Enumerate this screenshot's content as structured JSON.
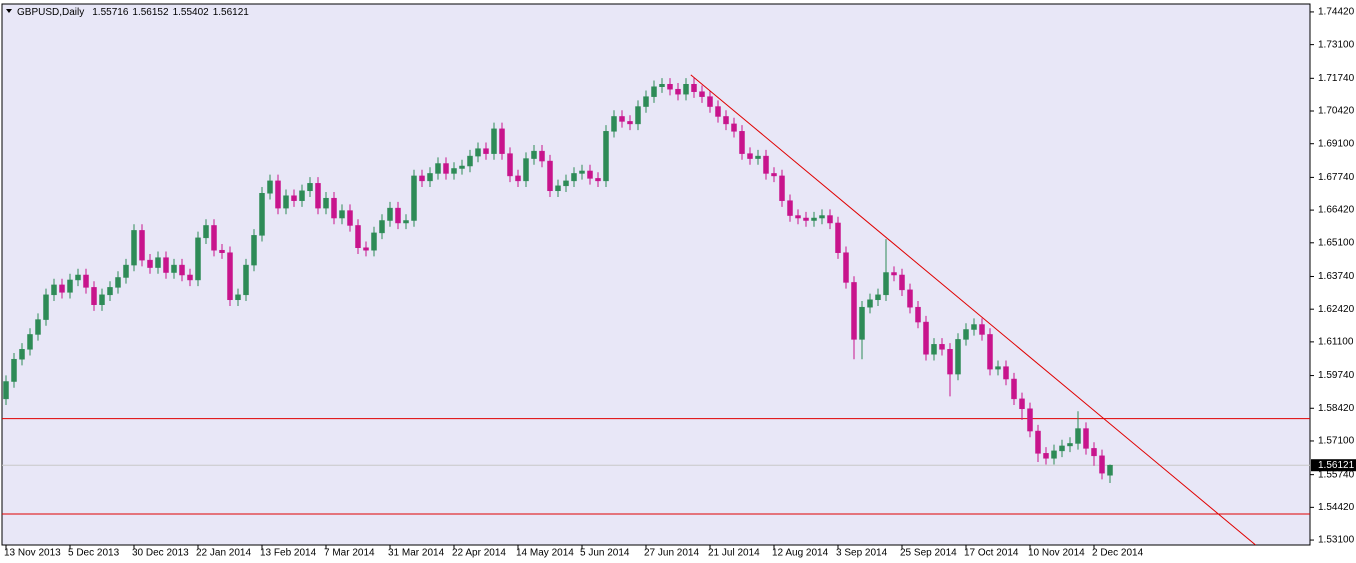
{
  "chart_data": {
    "type": "candlestick",
    "title": "GBPUSD,Daily",
    "up_color": "#2e8b57",
    "down_color": "#c8148c",
    "background": "#e8e7f7",
    "grid": false,
    "ylim": [
      1.529,
      1.7474
    ],
    "yticks": [
      {
        "value": 1.7442,
        "label": "1.74420"
      },
      {
        "value": 1.731,
        "label": "1.73100"
      },
      {
        "value": 1.7174,
        "label": "1.71740"
      },
      {
        "value": 1.7042,
        "label": "1.70420"
      },
      {
        "value": 1.691,
        "label": "1.69100"
      },
      {
        "value": 1.6774,
        "label": "1.67740"
      },
      {
        "value": 1.6642,
        "label": "1.66420"
      },
      {
        "value": 1.651,
        "label": "1.65100"
      },
      {
        "value": 1.6374,
        "label": "1.63740"
      },
      {
        "value": 1.6242,
        "label": "1.62420"
      },
      {
        "value": 1.611,
        "label": "1.61100"
      },
      {
        "value": 1.5974,
        "label": "1.59740"
      },
      {
        "value": 1.5842,
        "label": "1.58420"
      },
      {
        "value": 1.571,
        "label": "1.57100"
      },
      {
        "value": 1.5574,
        "label": "1.55740"
      },
      {
        "value": 1.5442,
        "label": "1.54420"
      },
      {
        "value": 1.531,
        "label": "1.53100"
      }
    ],
    "xlim": [
      -0.5,
      163
    ],
    "xticks": [
      {
        "value": 0,
        "label": "13 Nov 2013"
      },
      {
        "value": 8,
        "label": "5 Dec 2013"
      },
      {
        "value": 16,
        "label": "30 Dec 2013"
      },
      {
        "value": 24,
        "label": "22 Jan 2014"
      },
      {
        "value": 32,
        "label": "13 Feb 2014"
      },
      {
        "value": 40,
        "label": "7 Mar 2014"
      },
      {
        "value": 48,
        "label": "31 Mar 2014"
      },
      {
        "value": 56,
        "label": "22 Apr 2014"
      },
      {
        "value": 64,
        "label": "14 May 2014"
      },
      {
        "value": 72,
        "label": "5 Jun 2014"
      },
      {
        "value": 80,
        "label": "27 Jun 2014"
      },
      {
        "value": 88,
        "label": "21 Jul 2014"
      },
      {
        "value": 96,
        "label": "12 Aug 2014"
      },
      {
        "value": 104,
        "label": "3 Sep 2014"
      },
      {
        "value": 112,
        "label": "25 Sep 2014"
      },
      {
        "value": 120,
        "label": "17 Oct 2014"
      },
      {
        "value": 128,
        "label": "10 Nov 2014"
      },
      {
        "value": 136,
        "label": "2 Dec 2014"
      }
    ],
    "hlines": [
      1.58,
      1.5415
    ],
    "hline_color": "#e00000",
    "trendline": {
      "x": [
        85.6,
        156.2
      ],
      "y": [
        1.7188,
        1.529
      ],
      "color": "#e00000"
    },
    "candles": [
      [
        1.588,
        1.5975,
        1.5855,
        1.595
      ],
      [
        1.595,
        1.6065,
        1.5925,
        1.604
      ],
      [
        1.604,
        1.6105,
        1.6015,
        1.608
      ],
      [
        1.608,
        1.6165,
        1.6055,
        1.614
      ],
      [
        1.614,
        1.6225,
        1.6115,
        1.62
      ],
      [
        1.62,
        1.6325,
        1.6175,
        1.63
      ],
      [
        1.63,
        1.6365,
        1.6275,
        1.634
      ],
      [
        1.634,
        1.6365,
        1.6285,
        1.631
      ],
      [
        1.631,
        1.6385,
        1.6285,
        1.636
      ],
      [
        1.636,
        1.6405,
        1.6335,
        1.638
      ],
      [
        1.638,
        1.6405,
        1.6305,
        1.633
      ],
      [
        1.633,
        1.6355,
        1.6235,
        1.626
      ],
      [
        1.626,
        1.6325,
        1.6235,
        1.63
      ],
      [
        1.63,
        1.6355,
        1.6275,
        1.633
      ],
      [
        1.633,
        1.6395,
        1.6305,
        1.637
      ],
      [
        1.637,
        1.6445,
        1.6345,
        1.642
      ],
      [
        1.642,
        1.6585,
        1.6395,
        1.656
      ],
      [
        1.656,
        1.6585,
        1.6415,
        1.644
      ],
      [
        1.644,
        1.6465,
        1.6385,
        1.641
      ],
      [
        1.641,
        1.6475,
        1.6385,
        1.645
      ],
      [
        1.645,
        1.6475,
        1.6365,
        1.639
      ],
      [
        1.639,
        1.6445,
        1.6365,
        1.642
      ],
      [
        1.642,
        1.6445,
        1.6355,
        1.638
      ],
      [
        1.638,
        1.6405,
        1.6335,
        1.636
      ],
      [
        1.636,
        1.6555,
        1.6335,
        1.653
      ],
      [
        1.653,
        1.6605,
        1.6505,
        1.658
      ],
      [
        1.658,
        1.6605,
        1.6455,
        1.648
      ],
      [
        1.648,
        1.6505,
        1.6445,
        1.647
      ],
      [
        1.647,
        1.6495,
        1.6255,
        1.628
      ],
      [
        1.628,
        1.6325,
        1.6255,
        1.63
      ],
      [
        1.63,
        1.6445,
        1.6275,
        1.642
      ],
      [
        1.642,
        1.6565,
        1.6395,
        1.654
      ],
      [
        1.654,
        1.6735,
        1.6515,
        1.671
      ],
      [
        1.671,
        1.6785,
        1.6685,
        1.676
      ],
      [
        1.676,
        1.6785,
        1.6625,
        1.665
      ],
      [
        1.665,
        1.6725,
        1.6625,
        1.67
      ],
      [
        1.67,
        1.6725,
        1.6655,
        1.668
      ],
      [
        1.668,
        1.6745,
        1.6655,
        1.672
      ],
      [
        1.672,
        1.6775,
        1.6695,
        1.675
      ],
      [
        1.675,
        1.6775,
        1.6625,
        1.665
      ],
      [
        1.665,
        1.6715,
        1.6625,
        1.669
      ],
      [
        1.669,
        1.6715,
        1.6585,
        1.661
      ],
      [
        1.661,
        1.6665,
        1.6585,
        1.664
      ],
      [
        1.664,
        1.6665,
        1.6555,
        1.658
      ],
      [
        1.658,
        1.6605,
        1.6465,
        1.649
      ],
      [
        1.649,
        1.6515,
        1.6455,
        1.648
      ],
      [
        1.648,
        1.6575,
        1.6455,
        1.655
      ],
      [
        1.655,
        1.6625,
        1.6525,
        1.66
      ],
      [
        1.66,
        1.6675,
        1.6575,
        1.665
      ],
      [
        1.665,
        1.6675,
        1.6565,
        1.659
      ],
      [
        1.659,
        1.6625,
        1.6565,
        1.66
      ],
      [
        1.66,
        1.6805,
        1.6575,
        1.678
      ],
      [
        1.678,
        1.6805,
        1.6735,
        1.676
      ],
      [
        1.676,
        1.6815,
        1.6735,
        1.679
      ],
      [
        1.679,
        1.6855,
        1.6765,
        1.683
      ],
      [
        1.683,
        1.6855,
        1.6765,
        1.679
      ],
      [
        1.679,
        1.6835,
        1.6765,
        1.681
      ],
      [
        1.681,
        1.6845,
        1.6785,
        1.682
      ],
      [
        1.682,
        1.6885,
        1.6795,
        1.686
      ],
      [
        1.686,
        1.6915,
        1.6835,
        1.689
      ],
      [
        1.689,
        1.6915,
        1.6845,
        1.687
      ],
      [
        1.687,
        1.6995,
        1.6845,
        1.697
      ],
      [
        1.697,
        1.6995,
        1.6845,
        1.687
      ],
      [
        1.687,
        1.6895,
        1.6755,
        1.678
      ],
      [
        1.678,
        1.6805,
        1.6735,
        1.676
      ],
      [
        1.676,
        1.6875,
        1.6735,
        1.685
      ],
      [
        1.685,
        1.6905,
        1.6825,
        1.688
      ],
      [
        1.688,
        1.6905,
        1.6815,
        1.684
      ],
      [
        1.684,
        1.6865,
        1.6695,
        1.672
      ],
      [
        1.672,
        1.6765,
        1.6695,
        1.674
      ],
      [
        1.674,
        1.6785,
        1.6715,
        1.676
      ],
      [
        1.676,
        1.6815,
        1.6735,
        1.679
      ],
      [
        1.679,
        1.6825,
        1.6765,
        1.68
      ],
      [
        1.68,
        1.6825,
        1.6745,
        1.677
      ],
      [
        1.677,
        1.6795,
        1.6735,
        1.676
      ],
      [
        1.676,
        1.6985,
        1.6735,
        1.696
      ],
      [
        1.696,
        1.7045,
        1.6935,
        1.702
      ],
      [
        1.702,
        1.7045,
        1.6975,
        1.7
      ],
      [
        1.7,
        1.7025,
        1.6965,
        1.699
      ],
      [
        1.699,
        1.7085,
        1.6965,
        1.706
      ],
      [
        1.706,
        1.7125,
        1.7035,
        1.71
      ],
      [
        1.71,
        1.7165,
        1.7075,
        1.714
      ],
      [
        1.714,
        1.7175,
        1.7115,
        1.715
      ],
      [
        1.715,
        1.7175,
        1.7105,
        1.713
      ],
      [
        1.713,
        1.7155,
        1.7085,
        1.711
      ],
      [
        1.711,
        1.7175,
        1.7085,
        1.715
      ],
      [
        1.715,
        1.7175,
        1.7095,
        1.712
      ],
      [
        1.712,
        1.7145,
        1.7075,
        1.71
      ],
      [
        1.71,
        1.7125,
        1.7035,
        1.706
      ],
      [
        1.706,
        1.7085,
        1.6995,
        1.702
      ],
      [
        1.702,
        1.7045,
        1.6965,
        1.699
      ],
      [
        1.699,
        1.7015,
        1.6935,
        1.696
      ],
      [
        1.696,
        1.6985,
        1.6845,
        1.687
      ],
      [
        1.687,
        1.6895,
        1.6825,
        1.685
      ],
      [
        1.685,
        1.6885,
        1.6825,
        1.686
      ],
      [
        1.686,
        1.6885,
        1.6765,
        1.679
      ],
      [
        1.679,
        1.6815,
        1.6755,
        1.678
      ],
      [
        1.678,
        1.6805,
        1.6655,
        1.668
      ],
      [
        1.668,
        1.6705,
        1.6595,
        1.662
      ],
      [
        1.662,
        1.6645,
        1.6585,
        1.661
      ],
      [
        1.661,
        1.6635,
        1.6575,
        1.66
      ],
      [
        1.66,
        1.6635,
        1.6575,
        1.661
      ],
      [
        1.661,
        1.6645,
        1.6585,
        1.662
      ],
      [
        1.662,
        1.6645,
        1.6565,
        1.659
      ],
      [
        1.659,
        1.6615,
        1.6445,
        1.647
      ],
      [
        1.647,
        1.6495,
        1.6325,
        1.635
      ],
      [
        1.635,
        1.6375,
        1.604,
        1.612
      ],
      [
        1.612,
        1.6275,
        1.604,
        1.625
      ],
      [
        1.625,
        1.6305,
        1.6225,
        1.628
      ],
      [
        1.628,
        1.6325,
        1.6255,
        1.63
      ],
      [
        1.63,
        1.6525,
        1.6275,
        1.639
      ],
      [
        1.639,
        1.6415,
        1.6355,
        1.638
      ],
      [
        1.638,
        1.6405,
        1.6295,
        1.632
      ],
      [
        1.632,
        1.6345,
        1.6225,
        1.625
      ],
      [
        1.625,
        1.6275,
        1.6165,
        1.619
      ],
      [
        1.619,
        1.6215,
        1.6035,
        1.606
      ],
      [
        1.606,
        1.6125,
        1.6035,
        1.61
      ],
      [
        1.61,
        1.6125,
        1.6055,
        1.608
      ],
      [
        1.608,
        1.6105,
        1.589,
        1.598
      ],
      [
        1.598,
        1.6145,
        1.5955,
        1.612
      ],
      [
        1.612,
        1.6185,
        1.6095,
        1.616
      ],
      [
        1.616,
        1.6205,
        1.6135,
        1.618
      ],
      [
        1.618,
        1.6205,
        1.6115,
        1.614
      ],
      [
        1.614,
        1.6165,
        1.5975,
        1.6
      ],
      [
        1.6,
        1.6035,
        1.5975,
        1.601
      ],
      [
        1.601,
        1.6035,
        1.5935,
        1.596
      ],
      [
        1.596,
        1.5985,
        1.5855,
        1.588
      ],
      [
        1.588,
        1.5905,
        1.5795,
        1.584
      ],
      [
        1.584,
        1.5865,
        1.5725,
        1.575
      ],
      [
        1.575,
        1.5775,
        1.5625,
        1.566
      ],
      [
        1.566,
        1.5685,
        1.5615,
        1.564
      ],
      [
        1.564,
        1.5695,
        1.5615,
        1.567
      ],
      [
        1.567,
        1.5715,
        1.5645,
        1.569
      ],
      [
        1.569,
        1.5725,
        1.5665,
        1.57
      ],
      [
        1.57,
        1.583,
        1.5675,
        1.576
      ],
      [
        1.576,
        1.5785,
        1.5655,
        1.568
      ],
      [
        1.568,
        1.5705,
        1.561,
        1.565
      ],
      [
        1.565,
        1.5675,
        1.5555,
        1.558
      ],
      [
        1.55716,
        1.56152,
        1.55402,
        1.56121
      ]
    ]
  }
}
